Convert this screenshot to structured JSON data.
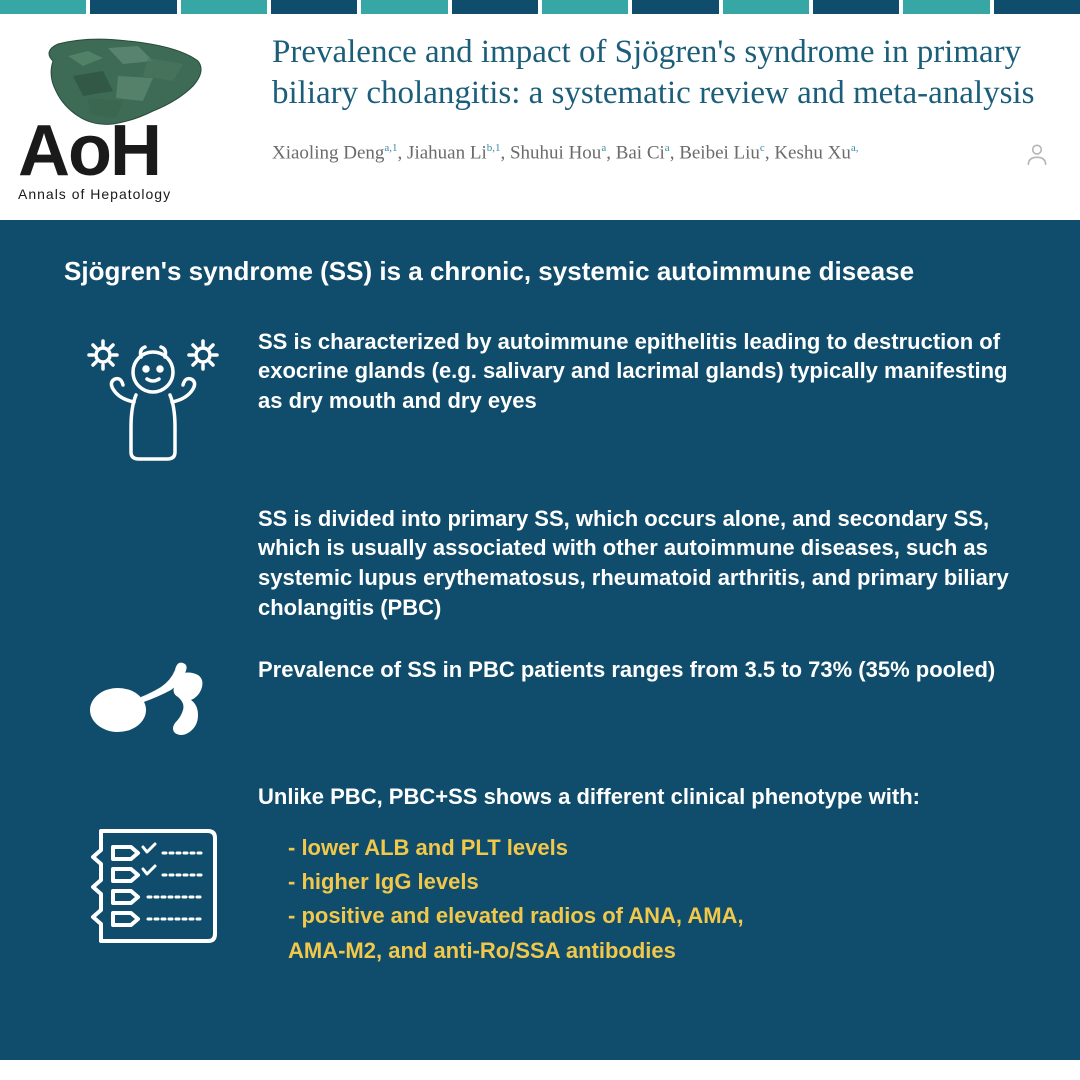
{
  "border_colors": [
    "#36a7a4",
    "#104d6c",
    "#36a7a4",
    "#104d6c",
    "#36a7a4",
    "#104d6c",
    "#36a7a4",
    "#104d6c",
    "#36a7a4",
    "#104d6c",
    "#36a7a4",
    "#104d6c"
  ],
  "logo": {
    "text": "AoH",
    "subtitle": "Annals of Hepatology"
  },
  "article": {
    "title": "Prevalence and impact of Sjögren's syndrome in primary biliary cholangitis: a systematic review and meta-analysis",
    "authors": [
      {
        "name": "Xiaoling Deng",
        "sup": "a,1"
      },
      {
        "name": "Jiahuan Li",
        "sup": "b,1"
      },
      {
        "name": "Shuhui Hou",
        "sup": "a"
      },
      {
        "name": "Bai Ci",
        "sup": "a"
      },
      {
        "name": "Beibei Liu",
        "sup": "c"
      },
      {
        "name": "Keshu Xu",
        "sup": "a,"
      }
    ]
  },
  "body": {
    "heading": "Sjögren's syndrome (SS) is a chronic, systemic autoimmune disease",
    "para1": "SS is characterized by autoimmune epithelitis leading to destruction of exocrine glands (e.g. salivary and lacrimal glands) typically manifesting as dry mouth and dry eyes",
    "para2": "SS is divided into primary SS, which occurs alone, and secondary SS, which is usually associated with other autoimmune diseases, such as systemic lupus erythematosus, rheumatoid arthritis, and primary biliary cholangitis (PBC)",
    "para3": "Prevalence of SS in PBC patients ranges from 3.5 to 73% (35% pooled)",
    "para4": "Unlike PBC, PBC+SS shows a different clinical phenotype with:",
    "bullets": [
      "- lower ALB and PLT levels",
      "- higher IgG levels",
      "- positive and elevated radios of ANA, AMA,",
      "AMA-M2, and anti-Ro/SSA antibodies"
    ]
  },
  "colors": {
    "panel_bg": "#104d6c",
    "title_color": "#1b5e7a",
    "highlight": "#f2c84b",
    "text_white": "#ffffff"
  }
}
